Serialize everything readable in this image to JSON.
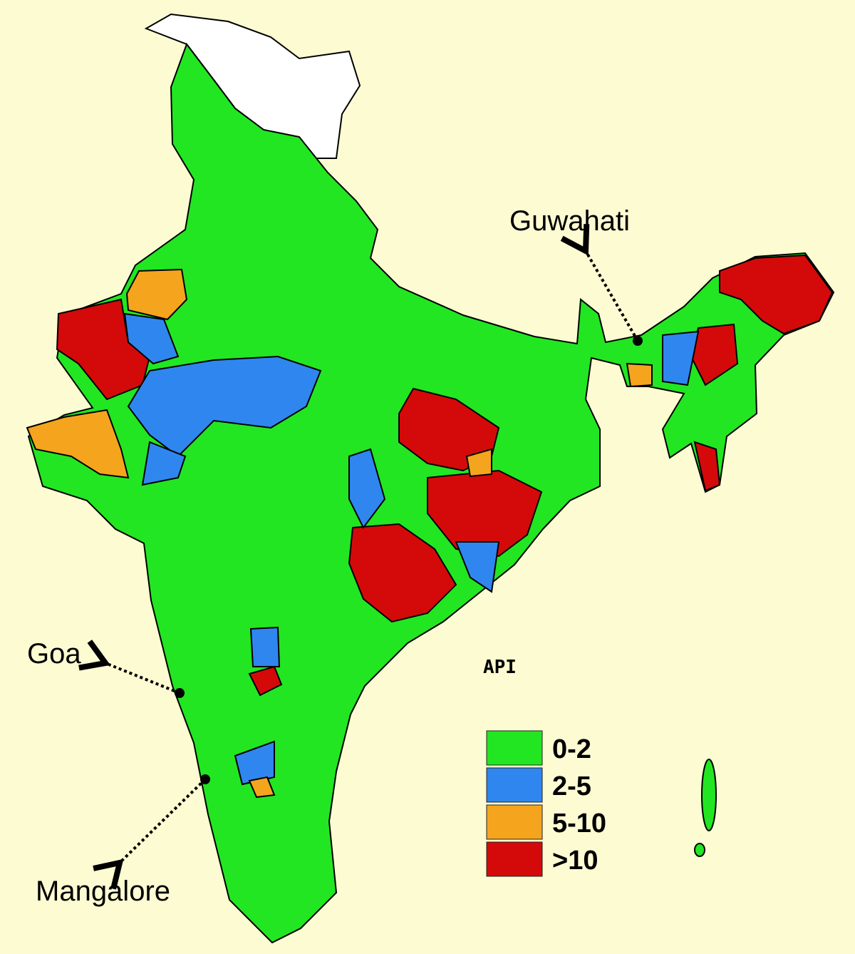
{
  "map": {
    "annotations": [
      {
        "label": "Guwahati"
      },
      {
        "label": "Goa"
      },
      {
        "label": "Mangalore"
      }
    ],
    "legend": {
      "title": "API",
      "items": [
        {
          "label": "0-2",
          "color": "#22e622"
        },
        {
          "label": "2-5",
          "color": "#2f86ee"
        },
        {
          "label": "5-10",
          "color": "#f5a41e"
        },
        {
          "label": ">10",
          "color": "#d40a0a"
        }
      ]
    }
  }
}
